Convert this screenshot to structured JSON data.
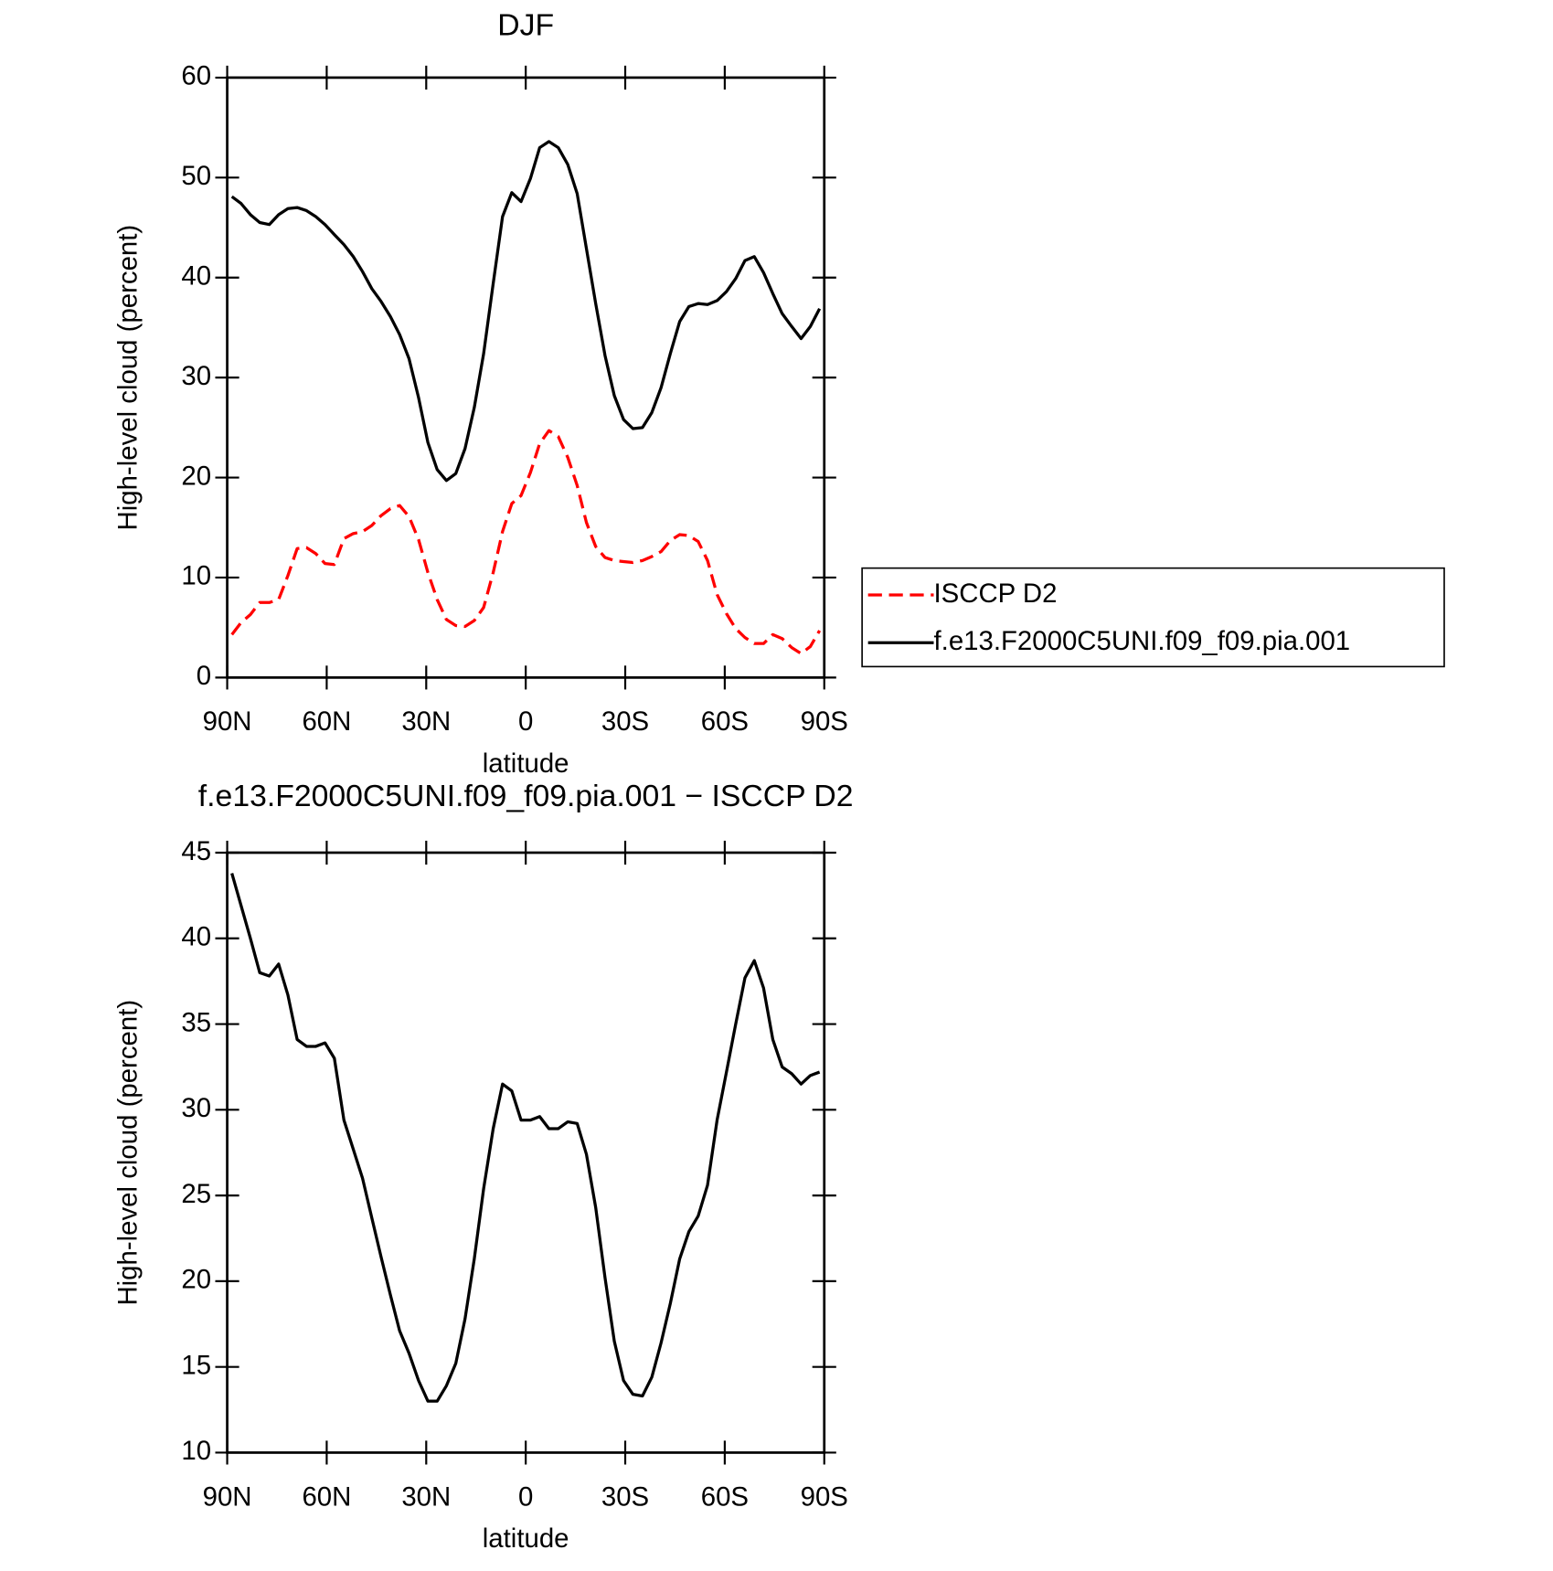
{
  "chart_data": [
    {
      "type": "line",
      "title": "DJF",
      "xlabel": "latitude",
      "ylabel": "High-level cloud (percent)",
      "x": [
        88.6,
        85.8,
        83.0,
        80.2,
        77.3,
        74.5,
        71.7,
        68.9,
        66.1,
        63.3,
        60.5,
        57.7,
        54.8,
        52.0,
        49.2,
        46.4,
        43.6,
        40.8,
        38.0,
        35.2,
        32.3,
        29.5,
        26.7,
        23.9,
        21.1,
        18.3,
        15.5,
        12.7,
        9.8,
        7.0,
        4.2,
        1.4,
        -1.4,
        -4.2,
        -7.0,
        -9.8,
        -12.7,
        -15.5,
        -18.3,
        -21.1,
        -23.9,
        -26.7,
        -29.5,
        -32.3,
        -35.2,
        -38.0,
        -40.8,
        -43.6,
        -46.4,
        -49.2,
        -52.0,
        -54.8,
        -57.7,
        -60.5,
        -63.3,
        -66.1,
        -68.9,
        -71.7,
        -74.5,
        -77.3,
        -80.2,
        -83.0,
        -85.8,
        -88.6
      ],
      "series": [
        {
          "name": "ISCCP D2",
          "color": "#ff0000",
          "dash": "dashed",
          "values": [
            4.3,
            5.5,
            6.3,
            7.5,
            7.5,
            7.8,
            10.2,
            12.9,
            13.0,
            12.4,
            11.4,
            11.3,
            13.9,
            14.4,
            14.6,
            15.2,
            16.2,
            16.9,
            17.2,
            16.1,
            13.8,
            10.5,
            7.8,
            5.8,
            5.2,
            5.1,
            5.7,
            7.0,
            10.5,
            14.6,
            17.4,
            18.2,
            20.5,
            23.4,
            24.7,
            24.1,
            22.0,
            19.2,
            15.5,
            13.1,
            12.0,
            11.7,
            11.6,
            11.5,
            11.7,
            12.1,
            12.6,
            13.7,
            14.3,
            14.2,
            13.6,
            11.7,
            8.3,
            6.4,
            4.9,
            4.0,
            3.4,
            3.4,
            4.3,
            3.9,
            3.0,
            2.4,
            3.1,
            4.7
          ]
        },
        {
          "name": "f.e13.F2000C5UNI.f09_f09.pia.001",
          "color": "#000000",
          "dash": "solid",
          "values": [
            48.1,
            47.4,
            46.3,
            45.5,
            45.3,
            46.3,
            46.9,
            47.0,
            46.7,
            46.1,
            45.3,
            44.3,
            43.3,
            42.1,
            40.6,
            38.9,
            37.6,
            36.1,
            34.3,
            31.9,
            28.0,
            23.5,
            20.8,
            19.7,
            20.4,
            22.9,
            27.0,
            32.4,
            39.4,
            46.1,
            48.5,
            47.6,
            49.9,
            53.0,
            53.6,
            53.0,
            51.3,
            48.4,
            42.9,
            37.4,
            32.2,
            28.2,
            25.8,
            24.9,
            25.0,
            26.5,
            29.0,
            32.4,
            35.6,
            37.1,
            37.4,
            37.3,
            37.7,
            38.6,
            39.9,
            41.7,
            42.1,
            40.5,
            38.4,
            36.4,
            35.1,
            33.9,
            35.1,
            36.9
          ]
        }
      ],
      "xlim": [
        90,
        -90
      ],
      "xticks": [
        {
          "value": 90,
          "label": "90N"
        },
        {
          "value": 60,
          "label": "60N"
        },
        {
          "value": 30,
          "label": "30N"
        },
        0,
        {
          "value": -30,
          "label": "30S"
        },
        {
          "value": -60,
          "label": "60S"
        },
        {
          "value": -90,
          "label": "90S"
        }
      ],
      "ylim": [
        0,
        60
      ],
      "yticks": [
        0,
        10,
        20,
        30,
        40,
        50,
        60
      ],
      "legend": "outside-right"
    },
    {
      "type": "line",
      "title": "f.e13.F2000C5UNI.f09_f09.pia.001 − ISCCP D2",
      "xlabel": "latitude",
      "ylabel": "High-level cloud (percent)",
      "x": [
        88.6,
        85.8,
        83.0,
        80.2,
        77.3,
        74.5,
        71.7,
        68.9,
        66.1,
        63.3,
        60.5,
        57.7,
        54.8,
        52.0,
        49.2,
        46.4,
        43.6,
        40.8,
        38.0,
        35.2,
        32.3,
        29.5,
        26.7,
        23.9,
        21.1,
        18.3,
        15.5,
        12.7,
        9.8,
        7.0,
        4.2,
        1.4,
        -1.4,
        -4.2,
        -7.0,
        -9.8,
        -12.7,
        -15.5,
        -18.3,
        -21.1,
        -23.9,
        -26.7,
        -29.5,
        -32.3,
        -35.2,
        -38.0,
        -40.8,
        -43.6,
        -46.4,
        -49.2,
        -52.0,
        -54.8,
        -57.7,
        -60.5,
        -63.3,
        -66.1,
        -68.9,
        -71.7,
        -74.5,
        -77.3,
        -80.2,
        -83.0,
        -85.8,
        -88.6
      ],
      "series": [
        {
          "color": "#000000",
          "dash": "solid",
          "values": [
            43.8,
            41.9,
            40.0,
            38.0,
            37.8,
            38.5,
            36.7,
            34.1,
            33.7,
            33.7,
            33.9,
            33.0,
            29.4,
            27.7,
            26.0,
            23.7,
            21.4,
            19.2,
            17.1,
            15.8,
            14.2,
            13.0,
            13.0,
            13.9,
            15.2,
            17.8,
            21.3,
            25.4,
            28.9,
            31.5,
            31.1,
            29.4,
            29.4,
            29.6,
            28.9,
            28.9,
            29.3,
            29.2,
            27.4,
            24.3,
            20.2,
            16.5,
            14.2,
            13.4,
            13.3,
            14.4,
            16.4,
            18.7,
            21.3,
            22.9,
            23.8,
            25.6,
            29.4,
            32.2,
            35.0,
            37.7,
            38.7,
            37.1,
            34.1,
            32.5,
            32.1,
            31.5,
            32.0,
            32.2
          ]
        }
      ],
      "xlim": [
        90,
        -90
      ],
      "xticks": [
        {
          "value": 90,
          "label": "90N"
        },
        {
          "value": 60,
          "label": "60N"
        },
        {
          "value": 30,
          "label": "30N"
        },
        0,
        {
          "value": -30,
          "label": "30S"
        },
        {
          "value": -60,
          "label": "60S"
        },
        {
          "value": -90,
          "label": "90S"
        }
      ],
      "ylim": [
        10,
        45
      ],
      "yticks": [
        10,
        15,
        20,
        25,
        30,
        35,
        40,
        45
      ]
    }
  ]
}
